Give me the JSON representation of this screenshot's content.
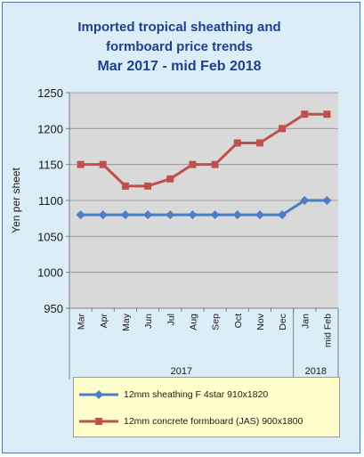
{
  "colors": {
    "blue": "#4a7fc4",
    "red": "#c0504d",
    "plot_bg": "#d9d9d9",
    "frame_bg": "#dbeef8"
  },
  "chart_data": {
    "type": "line",
    "title_lines": [
      "Imported tropical sheathing and",
      "formboard price trends",
      "Mar 2017 - mid Feb 2018"
    ],
    "ylabel": "Yen per sheet",
    "ylim": [
      950,
      1250
    ],
    "yticks": [
      950,
      1000,
      1050,
      1100,
      1150,
      1200,
      1250
    ],
    "categories": [
      "Mar",
      "Apr",
      "May",
      "Jun",
      "Jul",
      "Aug",
      "Sep",
      "Oct",
      "Nov",
      "Dec",
      "Jan",
      "mid Feb"
    ],
    "year_groups": [
      {
        "label": "2017",
        "start": 0,
        "end": 9
      },
      {
        "label": "2018",
        "start": 10,
        "end": 11
      }
    ],
    "series": [
      {
        "name": "12mm sheathing F 4star 910x1820",
        "color": "#4a7fc4",
        "marker": "diamond",
        "values": [
          1080,
          1080,
          1080,
          1080,
          1080,
          1080,
          1080,
          1080,
          1080,
          1080,
          1100,
          1100
        ]
      },
      {
        "name": "12mm concrete formboard (JAS) 900x1800",
        "color": "#c0504d",
        "marker": "square",
        "values": [
          1150,
          1150,
          1120,
          1120,
          1130,
          1150,
          1150,
          1180,
          1180,
          1200,
          1220,
          1220
        ]
      }
    ],
    "grid": true,
    "legend_position": "bottom"
  }
}
